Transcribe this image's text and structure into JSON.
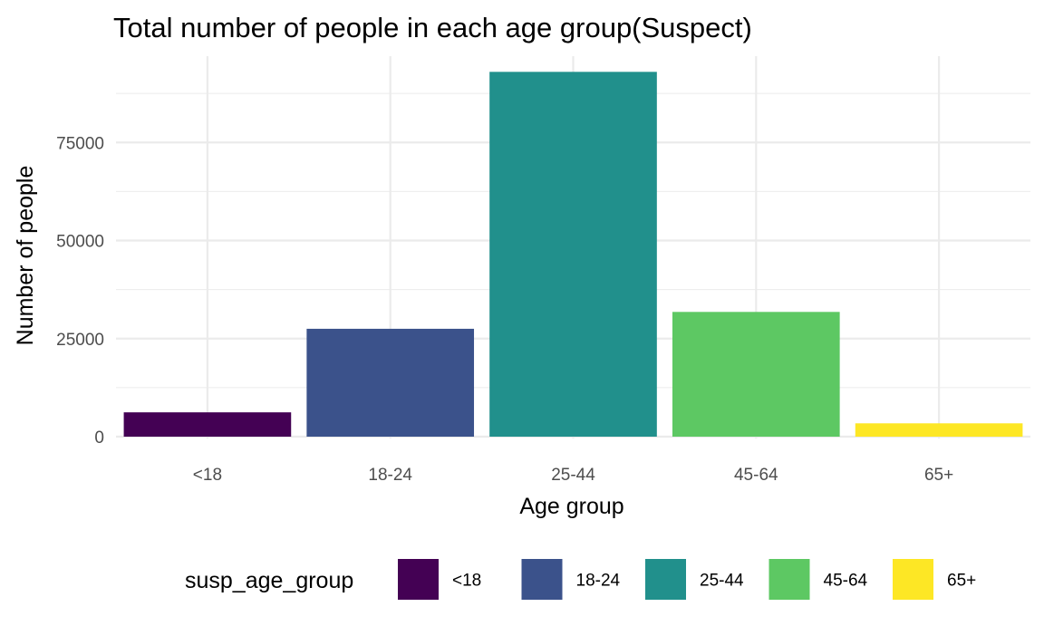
{
  "chart_data": {
    "type": "bar",
    "title": "Total number of people in each age group(Suspect)",
    "xlabel": "Age group",
    "ylabel": "Number of people",
    "categories": [
      "<18",
      "18-24",
      "25-44",
      "45-64",
      "65+"
    ],
    "values": [
      6200,
      27500,
      93000,
      31800,
      3400
    ],
    "colors": [
      "#440154",
      "#3b528b",
      "#21908c",
      "#5dc863",
      "#fde725"
    ],
    "ylim": [
      0,
      97000
    ],
    "yticks": [
      0,
      25000,
      50000,
      75000
    ],
    "ytick_labels": [
      "0",
      "25000",
      "50000",
      "75000"
    ],
    "grid": true,
    "legend": {
      "title": "susp_age_group",
      "position": "bottom",
      "entries": [
        "<18",
        "18-24",
        "25-44",
        "45-64",
        "65+"
      ]
    }
  }
}
